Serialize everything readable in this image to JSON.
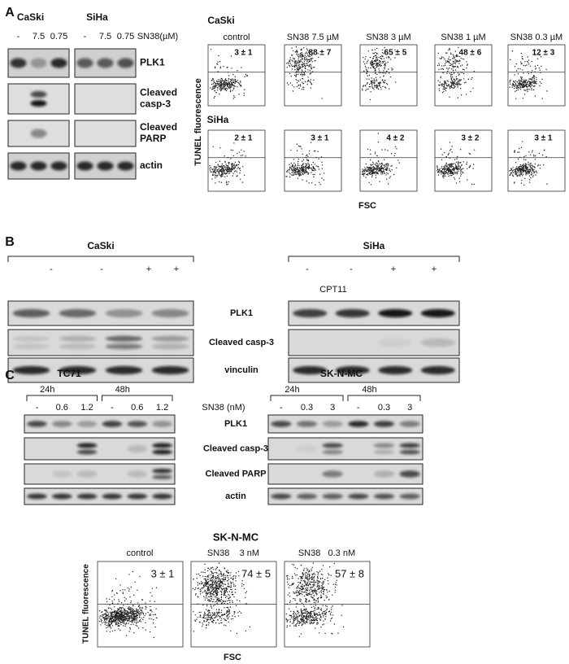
{
  "panelA": {
    "label": "A",
    "blot": {
      "cell_lines": [
        "CaSki",
        "SiHa"
      ],
      "doses": [
        "-",
        "7.5",
        "0.75"
      ],
      "treatment": "SN38(µM)",
      "bands": [
        [
          "PLK1"
        ],
        [
          "Cleaved",
          "casp-3"
        ],
        [
          "Cleaved",
          "PARP"
        ],
        [
          "actin"
        ]
      ]
    },
    "flow": {
      "y_label": "TUNEL fluorescence",
      "x_label": "FSC",
      "conditions": [
        "control",
        "SN38 7.5 µM",
        "SN38 3 µM",
        "SN38 1 µM",
        "SN38 0.3 µM"
      ],
      "rows": [
        {
          "cell_line": "CaSki",
          "values": [
            "3 ± 1",
            "88 ± 7",
            "65 ± 5",
            "48 ± 6",
            "12 ± 3"
          ]
        },
        {
          "cell_line": "SiHa",
          "values": [
            "2 ± 1",
            "3 ± 1",
            "4 ± 2",
            "3 ± 2",
            "3 ± 1"
          ]
        }
      ]
    }
  },
  "panelB": {
    "label": "B",
    "cell_lines": [
      "CaSki",
      "SiHa"
    ],
    "lanes": [
      "-",
      "-",
      "+",
      "+"
    ],
    "treatment": "CPT11",
    "bands": [
      "PLK1",
      "Cleaved casp-3",
      "vinculin"
    ]
  },
  "panelC": {
    "label": "C",
    "cell_lines": [
      {
        "name": "TC71",
        "doses": [
          "-",
          "0.6",
          "1.2",
          "-",
          "0.6",
          "1.2"
        ]
      },
      {
        "name": "SK-N-MC",
        "doses": [
          "-",
          "0.3",
          "3",
          "-",
          "0.3",
          "3"
        ]
      }
    ],
    "times": [
      "24h",
      "48h"
    ],
    "treatment": "SN38 (nM)",
    "bands": [
      "PLK1",
      "Cleaved casp-3",
      "Cleaved PARP",
      "actin"
    ],
    "flow": {
      "title": "SK-N-MC",
      "conditions": [
        "control",
        "SN38    3 nM",
        "SN38   0.3 nM"
      ],
      "values": [
        "3 ± 1",
        "74 ± 5",
        "57 ± 8"
      ],
      "y_label": "TUNEL fluorescence",
      "x_label": "FSC"
    }
  }
}
